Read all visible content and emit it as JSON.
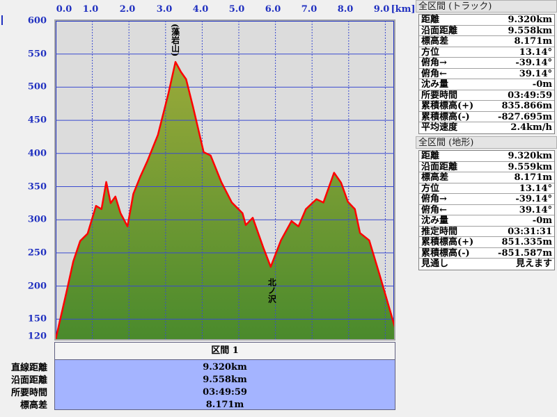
{
  "chart_data": {
    "type": "area",
    "xunit": "[km]",
    "x_ticks": [
      "0.0",
      "1.0",
      "2.0",
      "3.0",
      "4.0",
      "5.0",
      "6.0",
      "7.0",
      "8.0",
      "9.0"
    ],
    "y_ticks": [
      "600",
      "550",
      "500",
      "450",
      "400",
      "350",
      "300",
      "250",
      "200",
      "150",
      "120"
    ],
    "xlim": [
      0,
      9.32
    ],
    "ylim": [
      120,
      600
    ],
    "grid": true,
    "line_color": "#ff0000",
    "fill_color_top": "#9aaa3a",
    "fill_color_bottom": "#4a8a2c",
    "annotations": [
      {
        "text": "(藻岩山)",
        "x": 3.3,
        "y": 540
      },
      {
        "text": "北ノ沢",
        "x": 5.9,
        "y": 229
      }
    ],
    "profile": [
      [
        0,
        120
      ],
      [
        0.29,
        190
      ],
      [
        0.48,
        237
      ],
      [
        0.67,
        268
      ],
      [
        0.87,
        279
      ],
      [
        1.1,
        321
      ],
      [
        1.25,
        316
      ],
      [
        1.38,
        357
      ],
      [
        1.5,
        325
      ],
      [
        1.63,
        335
      ],
      [
        1.77,
        310
      ],
      [
        1.96,
        290
      ],
      [
        2.12,
        339
      ],
      [
        2.31,
        365
      ],
      [
        2.5,
        388
      ],
      [
        2.79,
        428
      ],
      [
        3.08,
        491
      ],
      [
        3.27,
        538
      ],
      [
        3.42,
        523
      ],
      [
        3.56,
        512
      ],
      [
        3.75,
        470
      ],
      [
        4.04,
        402
      ],
      [
        4.23,
        397
      ],
      [
        4.52,
        357
      ],
      [
        4.81,
        326
      ],
      [
        5.1,
        310
      ],
      [
        5.19,
        292
      ],
      [
        5.38,
        303
      ],
      [
        5.67,
        258
      ],
      [
        5.87,
        229
      ],
      [
        6.15,
        269
      ],
      [
        6.44,
        298
      ],
      [
        6.63,
        290
      ],
      [
        6.83,
        316
      ],
      [
        7.12,
        331
      ],
      [
        7.31,
        326
      ],
      [
        7.6,
        371
      ],
      [
        7.79,
        356
      ],
      [
        7.98,
        327
      ],
      [
        8.17,
        316
      ],
      [
        8.31,
        280
      ],
      [
        8.56,
        269
      ],
      [
        8.85,
        216
      ],
      [
        9.04,
        180
      ],
      [
        9.32,
        127
      ]
    ]
  },
  "summary": {
    "header": "区間 1",
    "labels": [
      "直線距離",
      "沿面距離",
      "所要時間",
      "標高差"
    ],
    "values": [
      "9.320km",
      "9.558km",
      "03:49:59",
      "8.171m"
    ]
  },
  "track_panel": {
    "title": "全区間 (トラック)",
    "rows": [
      {
        "label": "距離",
        "value": "9.320km"
      },
      {
        "label": "沿面距離",
        "value": "9.558km"
      },
      {
        "label": "標高差",
        "value": "8.171m"
      },
      {
        "label": "方位",
        "value": "13.14°"
      },
      {
        "label": "俯角→",
        "value": "-39.14°"
      },
      {
        "label": "俯角←",
        "value": "39.14°"
      },
      {
        "label": "沈み量",
        "value": "-0m"
      },
      {
        "label": "所要時間",
        "value": "03:49:59"
      },
      {
        "label": "累積標高(+)",
        "value": "835.866m"
      },
      {
        "label": "累積標高(-)",
        "value": "-827.695m"
      },
      {
        "label": "平均速度",
        "value": "2.4km/h"
      }
    ]
  },
  "terrain_panel": {
    "title": "全区間 (地形)",
    "rows": [
      {
        "label": "距離",
        "value": "9.320km"
      },
      {
        "label": "沿面距離",
        "value": "9.559km"
      },
      {
        "label": "標高差",
        "value": "8.171m"
      },
      {
        "label": "方位",
        "value": "13.14°"
      },
      {
        "label": "俯角→",
        "value": "-39.14°"
      },
      {
        "label": "俯角←",
        "value": "39.14°"
      },
      {
        "label": "沈み量",
        "value": "-0m"
      },
      {
        "label": "推定時間",
        "value": "03:31:31"
      },
      {
        "label": "累積標高(+)",
        "value": "851.335m"
      },
      {
        "label": "累積標高(-)",
        "value": "-851.587m"
      },
      {
        "label": "見通し",
        "value": "見えます"
      }
    ]
  }
}
